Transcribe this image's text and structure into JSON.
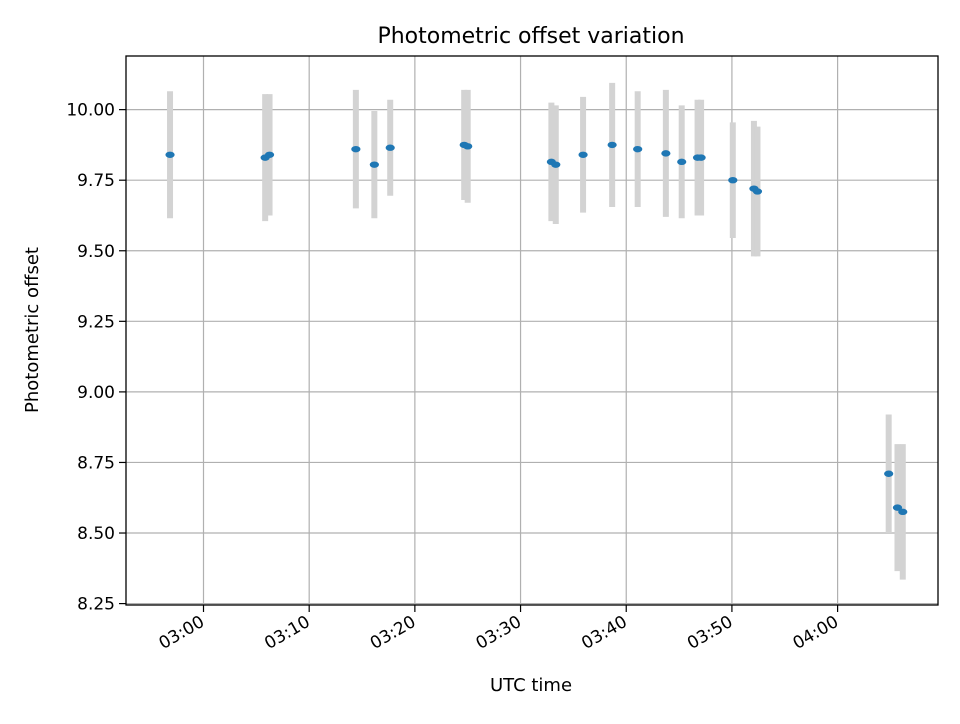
{
  "chart_data": {
    "type": "scatter",
    "title": "Photometric offset variation",
    "xlabel": "UTC time",
    "ylabel": "Photometric offset",
    "x_ticks": [
      "03:00",
      "03:10",
      "03:20",
      "03:30",
      "03:40",
      "03:50",
      "04:00"
    ],
    "y_ticks": [
      "8.25",
      "8.50",
      "8.75",
      "9.00",
      "9.25",
      "9.50",
      "9.75",
      "10.00"
    ],
    "xlim": [
      "02:52:40",
      "04:09:30"
    ],
    "ylim": [
      8.245,
      10.19
    ],
    "grid": true,
    "marker_color": "#1f77b4",
    "errorbar_color": "#d3d3d3",
    "series": [
      {
        "points": [
          {
            "x": "02:56:50",
            "y": 9.84,
            "err": 0.225
          },
          {
            "x": "03:05:50",
            "y": 9.83,
            "err": 0.225
          },
          {
            "x": "03:06:15",
            "y": 9.84,
            "err": 0.215
          },
          {
            "x": "03:14:25",
            "y": 9.86,
            "err": 0.21
          },
          {
            "x": "03:16:10",
            "y": 9.805,
            "err": 0.19
          },
          {
            "x": "03:17:40",
            "y": 9.865,
            "err": 0.17
          },
          {
            "x": "03:24:40",
            "y": 9.875,
            "err": 0.195
          },
          {
            "x": "03:25:00",
            "y": 9.87,
            "err": 0.2
          },
          {
            "x": "03:32:55",
            "y": 9.815,
            "err": 0.21
          },
          {
            "x": "03:33:20",
            "y": 9.805,
            "err": 0.21
          },
          {
            "x": "03:35:55",
            "y": 9.84,
            "err": 0.205
          },
          {
            "x": "03:38:40",
            "y": 9.875,
            "err": 0.22
          },
          {
            "x": "03:41:05",
            "y": 9.86,
            "err": 0.205
          },
          {
            "x": "03:43:45",
            "y": 9.845,
            "err": 0.225
          },
          {
            "x": "03:45:15",
            "y": 9.815,
            "err": 0.2
          },
          {
            "x": "03:46:45",
            "y": 9.83,
            "err": 0.205
          },
          {
            "x": "03:47:05",
            "y": 9.83,
            "err": 0.205
          },
          {
            "x": "03:50:05",
            "y": 9.75,
            "err": 0.205
          },
          {
            "x": "03:52:05",
            "y": 9.72,
            "err": 0.24
          },
          {
            "x": "03:52:25",
            "y": 9.71,
            "err": 0.23
          },
          {
            "x": "04:04:50",
            "y": 8.71,
            "err": 0.21
          },
          {
            "x": "04:05:40",
            "y": 8.59,
            "err": 0.225
          },
          {
            "x": "04:06:10",
            "y": 8.575,
            "err": 0.24
          }
        ]
      }
    ]
  }
}
